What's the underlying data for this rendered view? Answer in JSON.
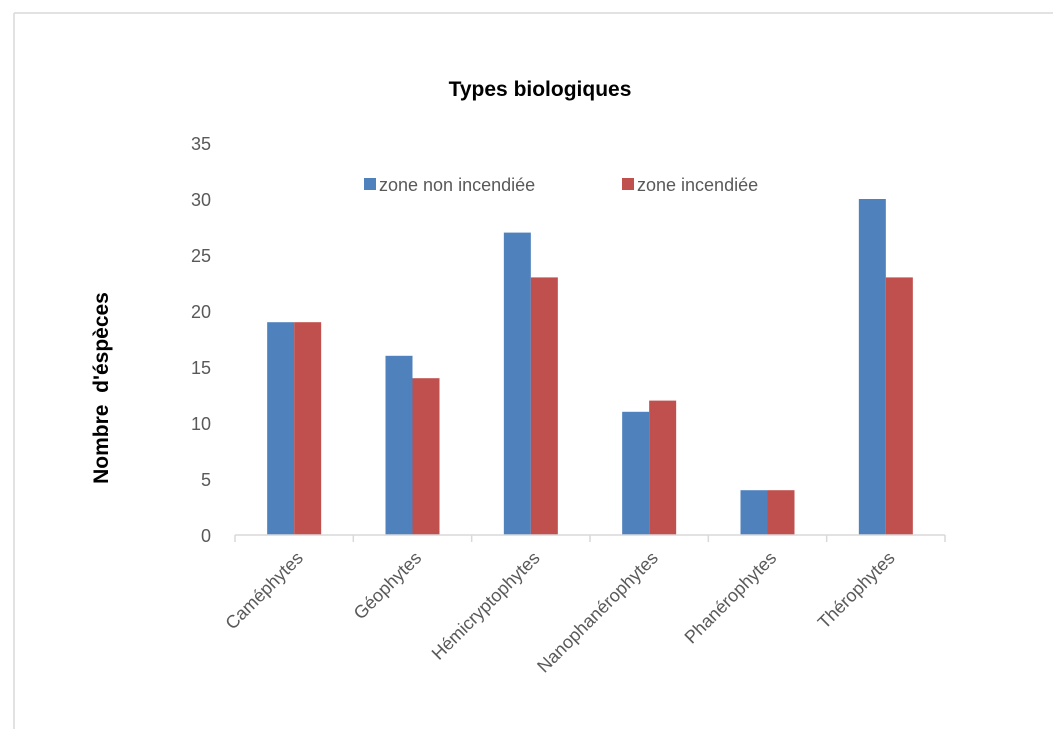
{
  "chart_data": {
    "type": "bar",
    "title": "Types biologiques",
    "xlabel": "",
    "ylabel": "Nombre  d'éspèces",
    "ylim": [
      0,
      35
    ],
    "yticks": [
      0,
      5,
      10,
      15,
      20,
      25,
      30,
      35
    ],
    "grid": false,
    "legend_position": "top",
    "categories": [
      "Caméphytes",
      "Géophytes",
      "Hémicryptophytes",
      "Nanophanérophytes",
      "Phanérophytes",
      "Thérophytes"
    ],
    "series": [
      {
        "name": "zone non incendiée",
        "color": "#4F81BD",
        "values": [
          19,
          16,
          27,
          11,
          4,
          30
        ]
      },
      {
        "name": "zone incendiée",
        "color": "#C0504D",
        "values": [
          19,
          14,
          23,
          12,
          4,
          23
        ]
      }
    ]
  }
}
